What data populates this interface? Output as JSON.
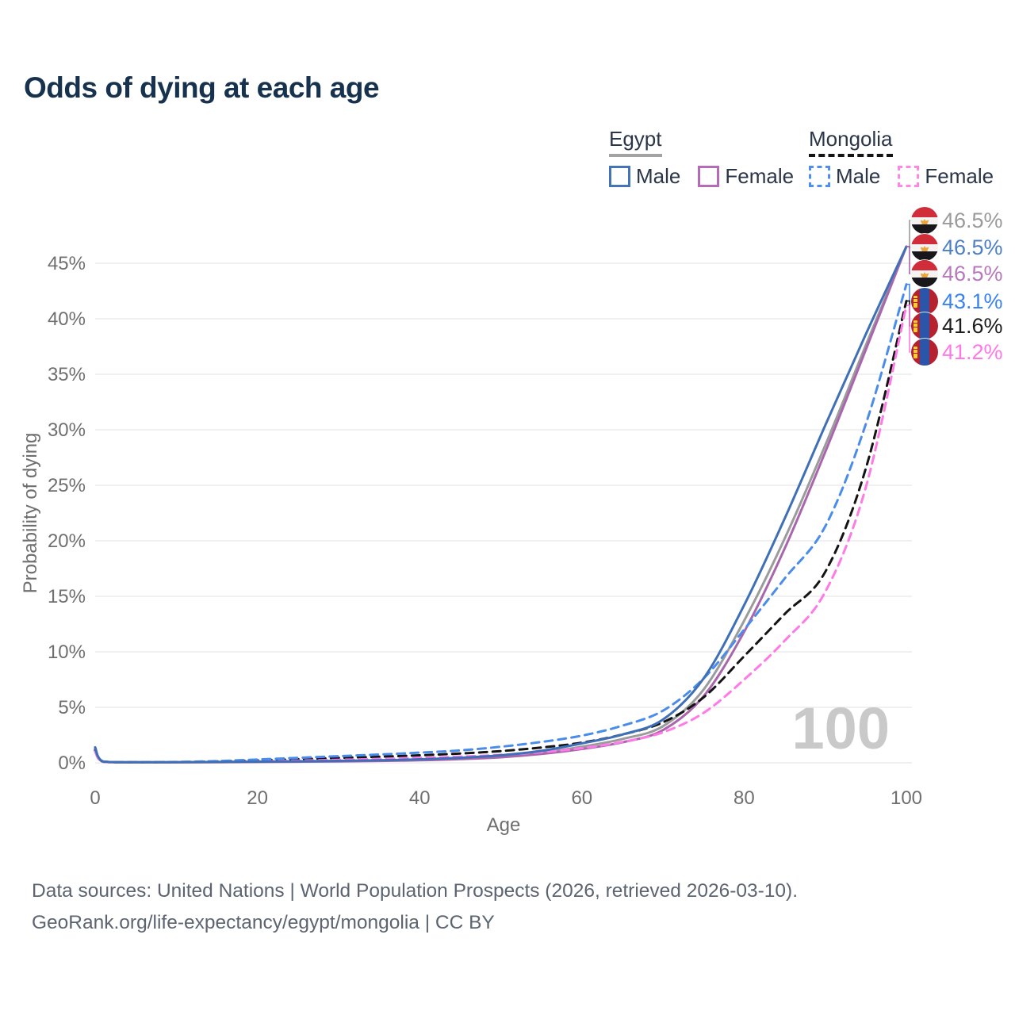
{
  "title": "Odds of dying at each age",
  "legend": {
    "groups": [
      {
        "name": "Egypt",
        "line_style": "solid",
        "underline_color": "#a3a3a3",
        "items": [
          {
            "label": "Male",
            "color": "#4473b8"
          },
          {
            "label": "Female",
            "color": "#b66bb8"
          }
        ]
      },
      {
        "name": "Mongolia",
        "line_style": "dashed",
        "underline_color": "#141414",
        "items": [
          {
            "label": "Male",
            "color": "#4d8ef0"
          },
          {
            "label": "Female",
            "color": "#ff85e8"
          }
        ]
      }
    ]
  },
  "end_labels": [
    {
      "value": "46.5%",
      "color": "#9a9a9a",
      "flag": "egypt"
    },
    {
      "value": "46.5%",
      "color": "#4d7fc4",
      "flag": "egypt"
    },
    {
      "value": "46.5%",
      "color": "#b878bc",
      "flag": "egypt"
    },
    {
      "value": "43.1%",
      "color": "#3b82f0",
      "flag": "mongolia"
    },
    {
      "value": "41.6%",
      "color": "#1c1c1c",
      "flag": "mongolia"
    },
    {
      "value": "41.2%",
      "color": "#ff78e8",
      "flag": "mongolia"
    }
  ],
  "footer": {
    "line1": "Data sources: United Nations | World Population Prospects (2026, retrieved 2026-03-10).",
    "line2": "GeoRank.org/life-expectancy/egypt/mongolia | CC BY"
  },
  "chart_data": {
    "type": "line",
    "title": "Odds of dying at each age",
    "xlabel": "Age",
    "ylabel": "Probability of dying",
    "watermark": "100",
    "grid": "horizontal",
    "legend_position": "top-right",
    "xlim": [
      0,
      100
    ],
    "ylim_percent": [
      0,
      48
    ],
    "x_ticks": [
      "0",
      "20",
      "40",
      "60",
      "80",
      "100"
    ],
    "x_tick_values": [
      0,
      20,
      40,
      60,
      80,
      100
    ],
    "y_ticks": [
      "0%",
      "5%",
      "10%",
      "15%",
      "20%",
      "25%",
      "30%",
      "35%",
      "40%",
      "45%"
    ],
    "y_tick_values": [
      0,
      5,
      10,
      15,
      20,
      25,
      30,
      35,
      40,
      45
    ],
    "ages": [
      0,
      1,
      5,
      10,
      15,
      20,
      25,
      30,
      35,
      40,
      45,
      50,
      55,
      60,
      65,
      70,
      75,
      80,
      85,
      90,
      95,
      100
    ],
    "series": [
      {
        "name": "Egypt — Both sexes",
        "country": "Egypt",
        "sex": "Both",
        "style": "solid",
        "color": "#9b9b9b",
        "end_value_pct": 46.5,
        "values": [
          1.25,
          0.11,
          0.05,
          0.05,
          0.07,
          0.09,
          0.12,
          0.15,
          0.2,
          0.27,
          0.4,
          0.58,
          0.92,
          1.45,
          2.15,
          3.3,
          6.6,
          12.8,
          20.2,
          28.6,
          37.6,
          46.5
        ]
      },
      {
        "name": "Egypt — Male",
        "country": "Egypt",
        "sex": "Male",
        "style": "solid",
        "color": "#3f6fb7",
        "end_value_pct": 46.5,
        "values": [
          1.4,
          0.12,
          0.05,
          0.06,
          0.08,
          0.11,
          0.14,
          0.18,
          0.23,
          0.32,
          0.46,
          0.68,
          1.08,
          1.75,
          2.55,
          3.9,
          7.6,
          14.2,
          22.0,
          30.4,
          38.6,
          46.5
        ]
      },
      {
        "name": "Egypt — Female",
        "country": "Egypt",
        "sex": "Female",
        "style": "solid",
        "color": "#a966ad",
        "end_value_pct": 46.5,
        "values": [
          1.1,
          0.1,
          0.04,
          0.05,
          0.06,
          0.08,
          0.1,
          0.13,
          0.17,
          0.23,
          0.34,
          0.5,
          0.8,
          1.25,
          1.85,
          2.95,
          6.0,
          11.8,
          19.3,
          28.0,
          37.2,
          46.5
        ]
      },
      {
        "name": "Mongolia — Male",
        "country": "Mongolia",
        "sex": "Male",
        "style": "dashed",
        "color": "#4a8cea",
        "end_value_pct": 43.1,
        "values": [
          1.3,
          0.12,
          0.06,
          0.08,
          0.16,
          0.3,
          0.45,
          0.6,
          0.75,
          0.92,
          1.12,
          1.45,
          1.88,
          2.45,
          3.35,
          4.7,
          7.6,
          12.0,
          16.6,
          21.3,
          30.5,
          43.1
        ]
      },
      {
        "name": "Mongolia — Both sexes",
        "country": "Mongolia",
        "sex": "Both",
        "style": "dashed",
        "color": "#141414",
        "end_value_pct": 41.6,
        "values": [
          1.15,
          0.1,
          0.05,
          0.07,
          0.12,
          0.22,
          0.33,
          0.44,
          0.55,
          0.68,
          0.84,
          1.06,
          1.38,
          1.82,
          2.55,
          3.65,
          5.9,
          9.6,
          13.4,
          17.2,
          26.5,
          41.6
        ]
      },
      {
        "name": "Mongolia — Female",
        "country": "Mongolia",
        "sex": "Female",
        "style": "dashed",
        "color": "#ff7ae6",
        "end_value_pct": 41.2,
        "values": [
          1.0,
          0.09,
          0.04,
          0.05,
          0.08,
          0.14,
          0.2,
          0.27,
          0.35,
          0.45,
          0.56,
          0.72,
          0.96,
          1.32,
          1.88,
          2.75,
          4.5,
          7.5,
          11.0,
          15.4,
          24.8,
          41.2
        ]
      }
    ]
  }
}
